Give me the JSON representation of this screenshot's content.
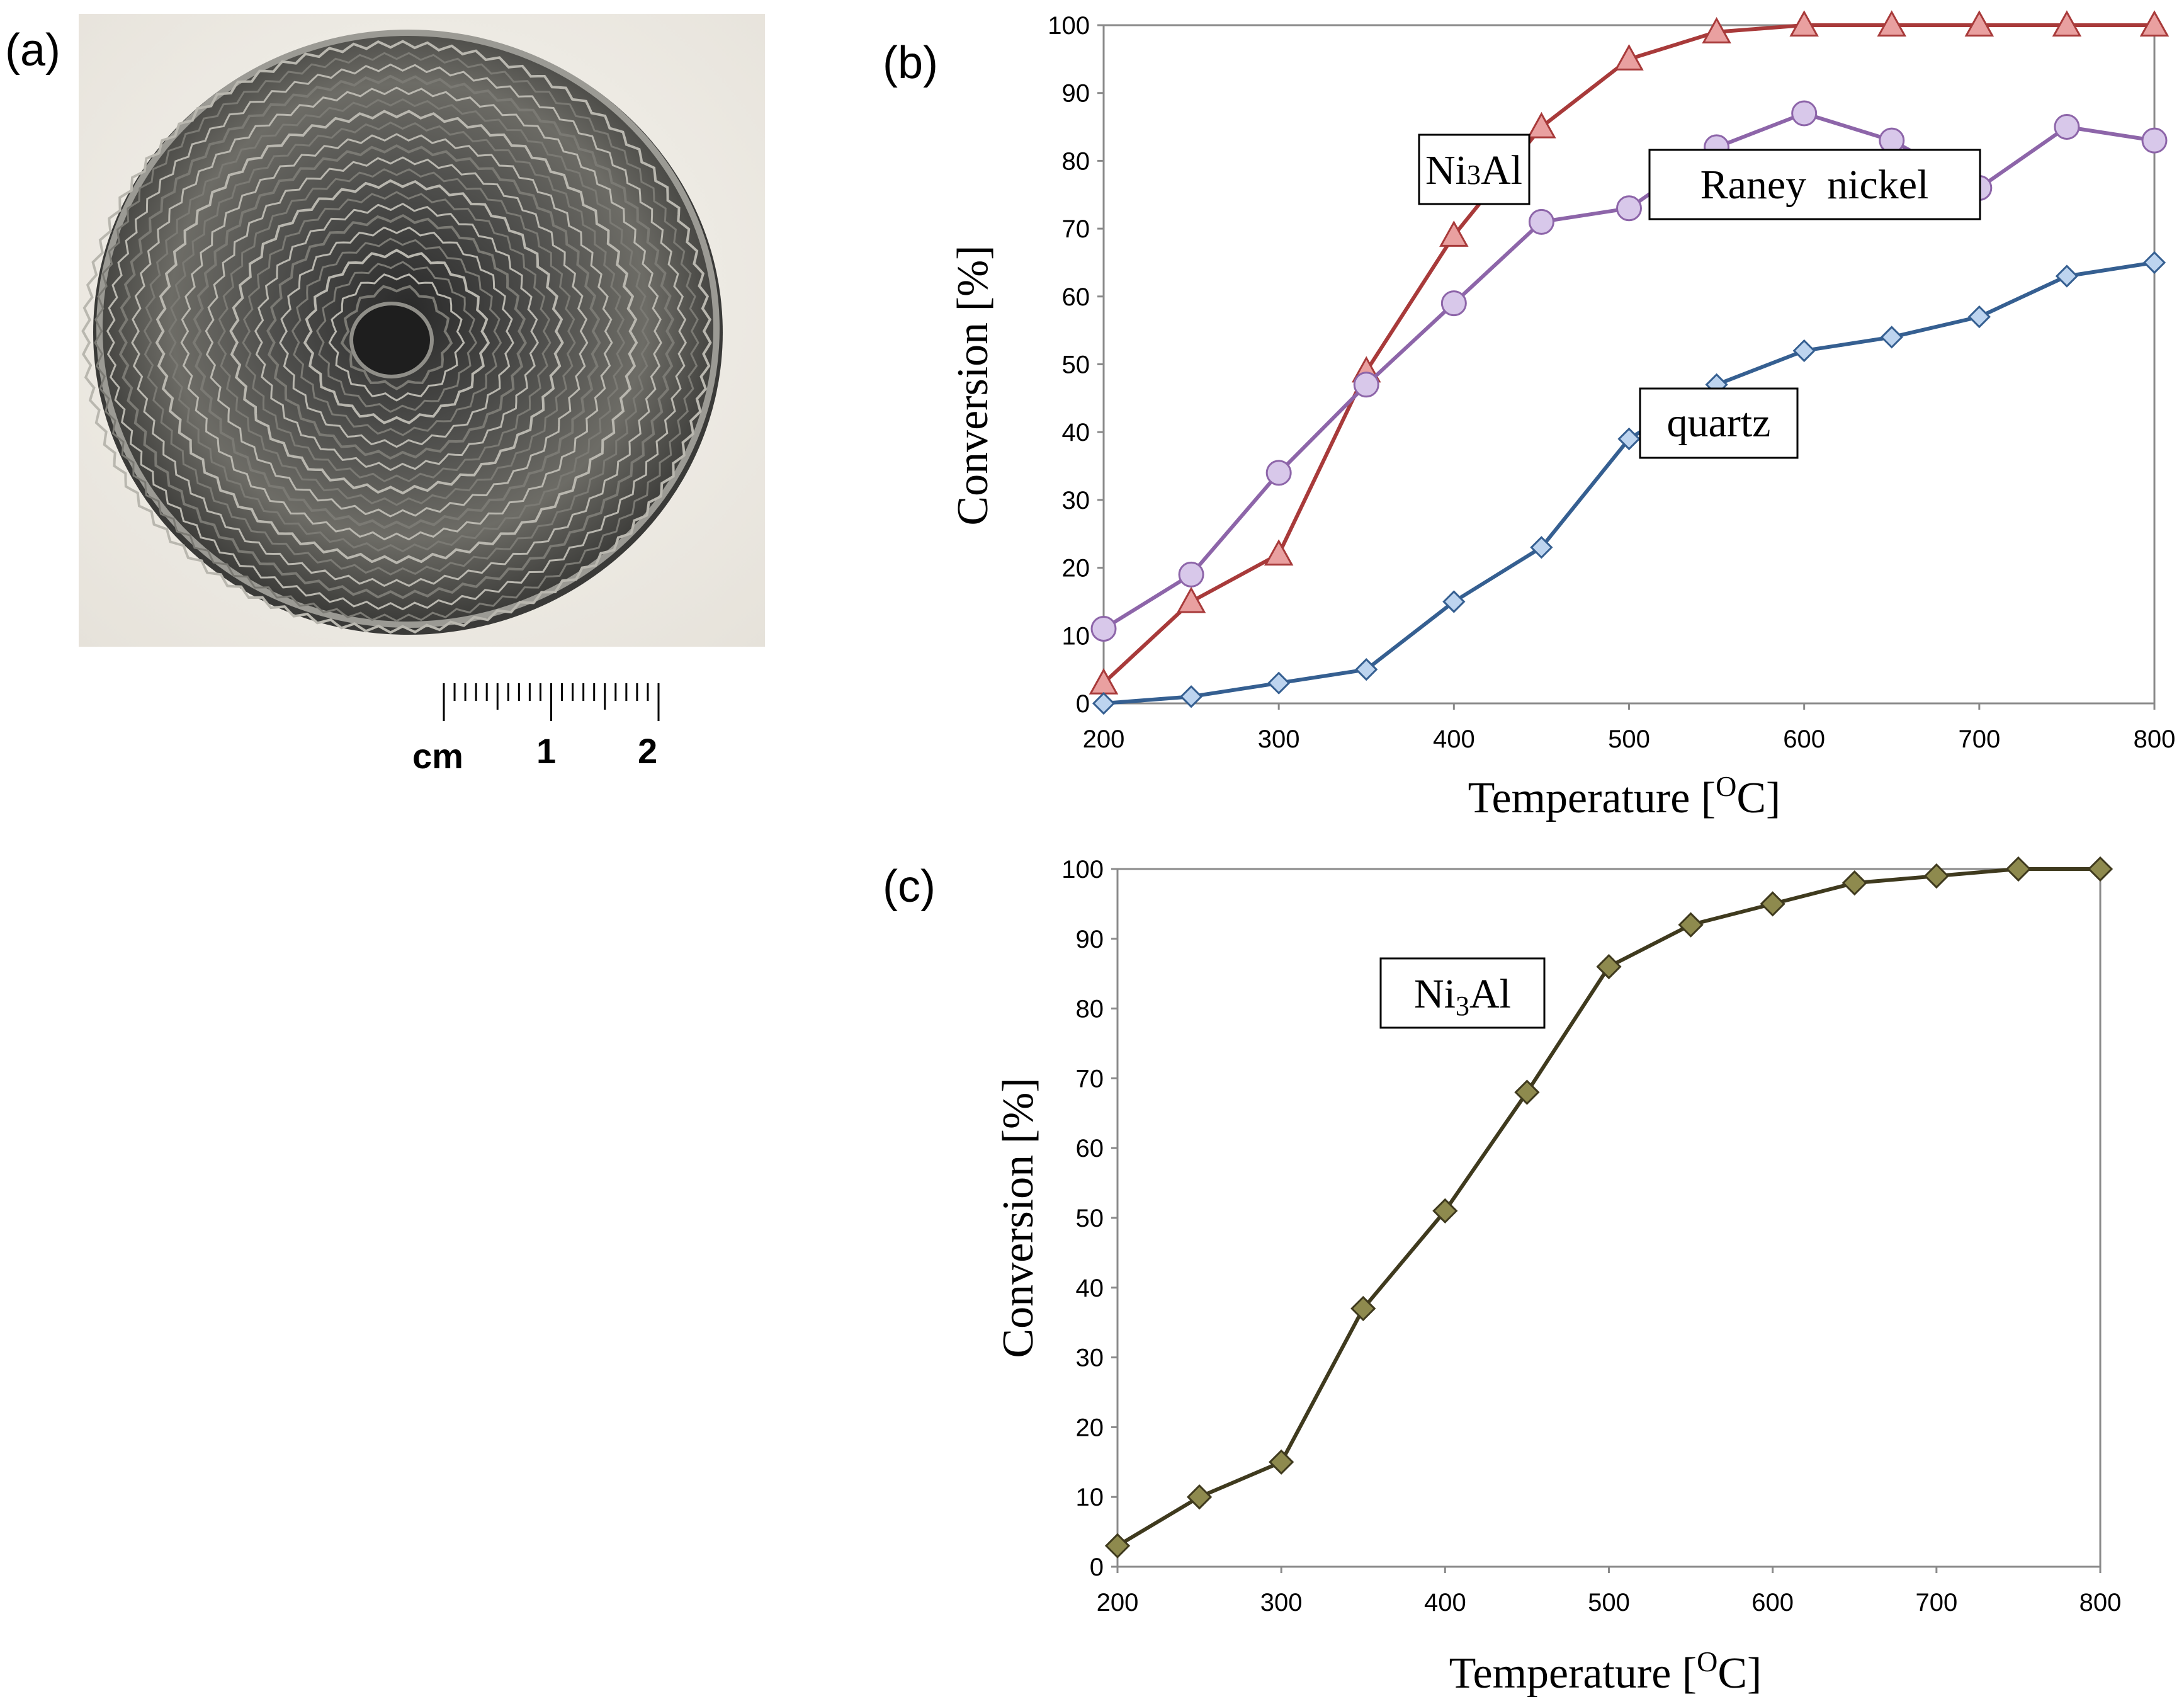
{
  "panels": {
    "a": {
      "label": "(a)"
    },
    "b": {
      "label": "(b)"
    },
    "c": {
      "label": "(c)"
    }
  },
  "photo": {
    "subject": "coiled corrugated metal foil catalyst",
    "scale_bar": {
      "unit_label": "cm",
      "mark_1": "1",
      "mark_2": "2"
    }
  },
  "colors": {
    "ni3al_b": "#a83a3a",
    "ni3al_b_marker": "#e9a0a0",
    "raney": "#8d65a9",
    "raney_marker": "#d8c8ea",
    "quartz": "#355f91",
    "quartz_marker": "#bdd4ef",
    "ni3al_c": "#3f3a1e",
    "ni3al_c_marker": "#8e8a4e",
    "frame": "#8a8a8a"
  },
  "chart_data": [
    {
      "id": "b",
      "type": "line",
      "xlabel": "Temperature [",
      "xlabel_sup": "O",
      "xlabel_tail": "C]",
      "ylabel": "Conversion [%]",
      "x": [
        200,
        250,
        300,
        350,
        400,
        450,
        500,
        550,
        600,
        650,
        700,
        750,
        800
      ],
      "xlim": [
        200,
        800
      ],
      "ylim": [
        0,
        100
      ],
      "xticks": [
        200,
        300,
        400,
        500,
        600,
        700,
        800
      ],
      "yticks": [
        0,
        10,
        20,
        30,
        40,
        50,
        60,
        70,
        80,
        90,
        100
      ],
      "series": [
        {
          "name": "Ni3Al",
          "marker": "triangle",
          "values": [
            3,
            15,
            22,
            49,
            69,
            85,
            95,
            99,
            100,
            100,
            100,
            100,
            100
          ]
        },
        {
          "name": "Raney nickel",
          "marker": "circle",
          "values": [
            11,
            19,
            34,
            47,
            59,
            71,
            73,
            82,
            87,
            83,
            76,
            85,
            83
          ]
        },
        {
          "name": "quartz",
          "marker": "diamond",
          "values": [
            0,
            1,
            3,
            5,
            15,
            23,
            39,
            47,
            52,
            54,
            57,
            63,
            65
          ]
        }
      ],
      "annotations": [
        {
          "text": "Ni",
          "sub": "3",
          "tail": "Al"
        },
        {
          "text": "Raney  nickel"
        },
        {
          "text": "quartz"
        }
      ]
    },
    {
      "id": "c",
      "type": "line",
      "xlabel": "Temperature [",
      "xlabel_sup": "O",
      "xlabel_tail": "C]",
      "ylabel": "Conversion [%]",
      "x": [
        200,
        250,
        300,
        350,
        400,
        450,
        500,
        550,
        600,
        650,
        700,
        750,
        800
      ],
      "xlim": [
        200,
        800
      ],
      "ylim": [
        0,
        100
      ],
      "xticks": [
        200,
        300,
        400,
        500,
        600,
        700,
        800
      ],
      "yticks": [
        0,
        10,
        20,
        30,
        40,
        50,
        60,
        70,
        80,
        90,
        100
      ],
      "series": [
        {
          "name": "Ni3Al",
          "marker": "diamond",
          "values": [
            3,
            10,
            15,
            37,
            51,
            68,
            86,
            92,
            95,
            98,
            99,
            100,
            100
          ]
        }
      ],
      "annotations": [
        {
          "text": "Ni",
          "sub": "3",
          "tail": "Al"
        }
      ]
    }
  ]
}
